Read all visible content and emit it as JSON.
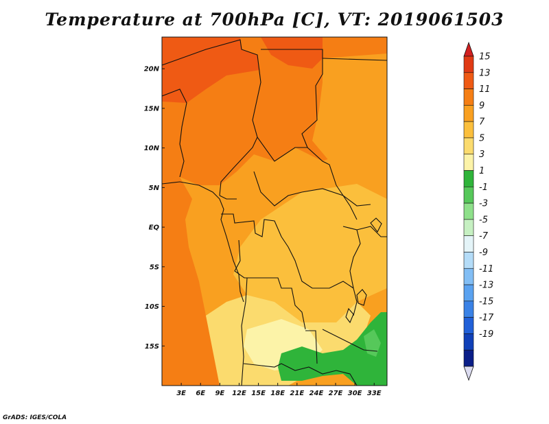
{
  "title": "Temperature at 700hPa [C], VT: 2019061503",
  "credit": "GrADS: IGES/COLA",
  "map": {
    "lon_range": [
      0,
      35
    ],
    "lat_range": [
      -20,
      24
    ],
    "lat_labels": [
      {
        "lat": 20,
        "label": "20N"
      },
      {
        "lat": 15,
        "label": "15N"
      },
      {
        "lat": 10,
        "label": "10N"
      },
      {
        "lat": 5,
        "label": "5N"
      },
      {
        "lat": 0,
        "label": "EQ"
      },
      {
        "lat": -5,
        "label": "5S"
      },
      {
        "lat": -10,
        "label": "10S"
      },
      {
        "lat": -15,
        "label": "15S"
      }
    ],
    "lon_labels": [
      {
        "lon": 3,
        "label": "3E"
      },
      {
        "lon": 6,
        "label": "6E"
      },
      {
        "lon": 9,
        "label": "9E"
      },
      {
        "lon": 12,
        "label": "12E"
      },
      {
        "lon": 15,
        "label": "15E"
      },
      {
        "lon": 18,
        "label": "18E"
      },
      {
        "lon": 21,
        "label": "21E"
      },
      {
        "lon": 24,
        "label": "24E"
      },
      {
        "lon": 27,
        "label": "27E"
      },
      {
        "lon": 30,
        "label": "30E"
      },
      {
        "lon": 33,
        "label": "33E"
      }
    ]
  },
  "colorbar": {
    "labels": [
      "15",
      "13",
      "11",
      "9",
      "7",
      "5",
      "3",
      "1",
      "-1",
      "-3",
      "-5",
      "-7",
      "-9",
      "-11",
      "-13",
      "-15",
      "-17",
      "-19"
    ],
    "top_cap_color": "#d22020",
    "bottom_cap_color": "#dcdcf0",
    "colors": [
      "#e03a14",
      "#ef5a14",
      "#f57e14",
      "#f9a020",
      "#fbbf3c",
      "#fbdb6e",
      "#fcf3a8",
      "#2fb43a",
      "#56c85a",
      "#8ee08a",
      "#c6f0c2",
      "#e4f4f8",
      "#b4dcf8",
      "#82bef5",
      "#5aa2f0",
      "#3a82e6",
      "#2160d8",
      "#1040b8",
      "#0a1e88"
    ]
  }
}
